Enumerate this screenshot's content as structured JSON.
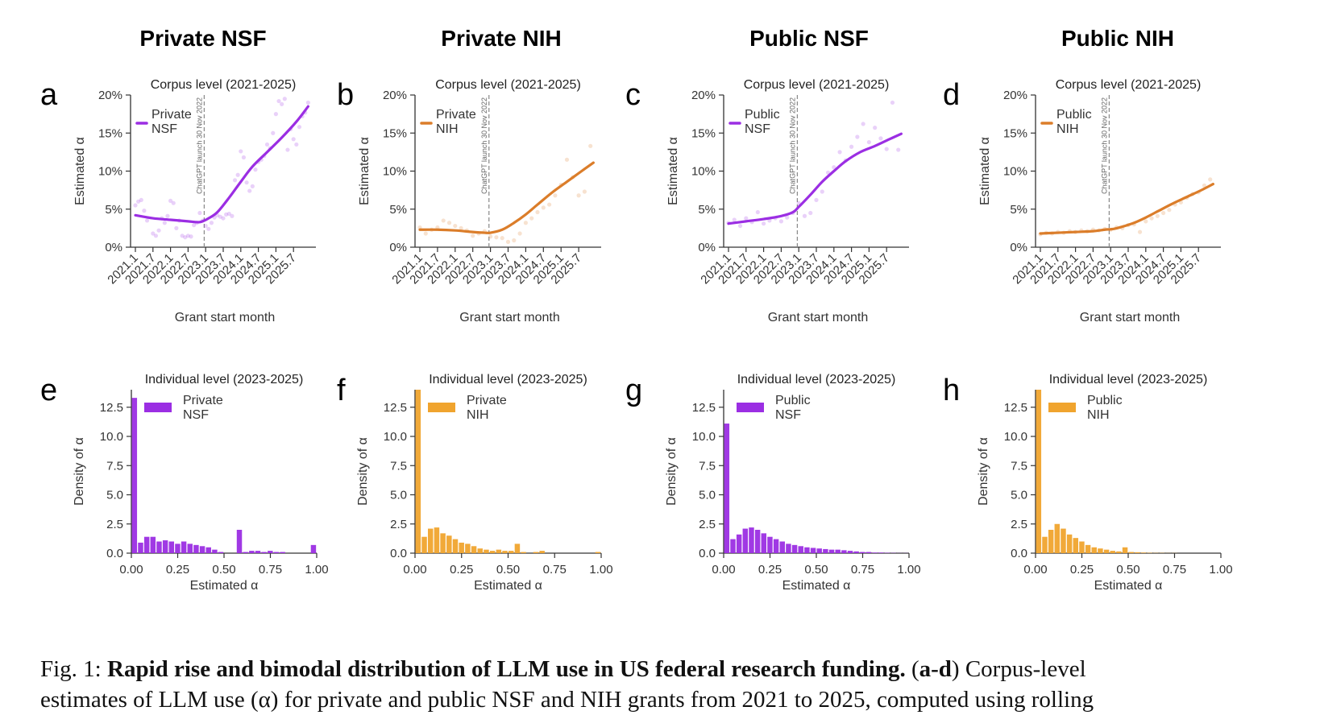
{
  "columns": [
    "Private NSF",
    "Private NIH",
    "Public NSF",
    "Public NIH"
  ],
  "caption": {
    "label": "Fig. 1:",
    "title": "Rapid rise and bimodal distribution of LLM use in US federal research funding.",
    "panel_ref": "a-d",
    "line1_tail": "Corpus-level",
    "line2": "estimates of LLM use (α) for private and public NSF and NIH grants from 2021 to 2025, computed using rolling"
  },
  "colors": {
    "nsf": "#9b2ee3",
    "nih_line": "#db7d2a",
    "nih_bar": "#f0a42e",
    "vline": "#888888",
    "axis": "#333333"
  },
  "chart_data": [
    {
      "panel": "a",
      "type": "line",
      "title": "Corpus level (2021-2025)",
      "xlabel": "Grant start month",
      "ylabel": "Estimated α",
      "legend": "Private\nNSF",
      "legend_position": "top-left",
      "color_key": "nsf",
      "ylim": [
        0,
        20
      ],
      "y_ticks": [
        0,
        5,
        10,
        15,
        20
      ],
      "y_tick_labels": [
        "0%",
        "5%",
        "10%",
        "15%",
        "20%"
      ],
      "x_ticks": [
        "2021.1",
        "2021.7",
        "2022.1",
        "2022.7",
        "2023.1",
        "2023.7",
        "2024.1",
        "2024.7",
        "2025.1",
        "2025.7"
      ],
      "x_range": [
        0,
        60
      ],
      "vline": {
        "x": 23.5,
        "label": "ChatGPT launch 30 Nov 2022"
      },
      "line": {
        "x": [
          0,
          6,
          12,
          18,
          22,
          25,
          28,
          32,
          36,
          40,
          45,
          50,
          55,
          59
        ],
        "y": [
          4.2,
          3.8,
          3.6,
          3.4,
          3.3,
          3.8,
          4.6,
          6.5,
          8.6,
          10.6,
          12.5,
          14.4,
          16.5,
          18.5
        ]
      },
      "points": {
        "x": [
          0,
          1,
          2,
          3,
          4,
          6,
          7,
          8,
          9,
          10,
          11,
          12,
          13,
          14,
          15,
          16,
          17,
          18,
          19,
          20,
          21,
          22,
          23,
          24,
          25,
          26,
          27,
          28,
          29,
          30,
          31,
          32,
          33,
          34,
          35,
          36,
          37,
          38,
          39,
          40,
          41,
          42,
          43,
          44,
          45,
          46,
          47,
          48,
          49,
          50,
          51,
          52,
          53,
          54,
          55,
          56,
          57,
          58,
          59
        ],
        "y": [
          5.5,
          6,
          6.2,
          4.8,
          3.5,
          1.8,
          1.5,
          2.2,
          3.8,
          3.2,
          4.1,
          6.1,
          5.8,
          2.5,
          3.5,
          1.5,
          1.3,
          1.5,
          1.4,
          2.9,
          3.2,
          4.5,
          3.5,
          2.8,
          2.4,
          3.2,
          3.9,
          4.2,
          4,
          3.8,
          4.3,
          4.4,
          4.1,
          8.8,
          9.5,
          12.6,
          11.8,
          8.5,
          7.4,
          8,
          10.2,
          11.2,
          11.5,
          12,
          13.5,
          13,
          15,
          17.5,
          19.2,
          18.8,
          19.5,
          12.8,
          15.5,
          14.2,
          13.5,
          15.8,
          17.2,
          17.7,
          19
        ]
      }
    },
    {
      "panel": "b",
      "type": "line",
      "title": "Corpus level (2021-2025)",
      "xlabel": "Grant start month",
      "ylabel": "Estimated α",
      "legend": "Private\nNIH",
      "legend_position": "top-left",
      "color_key": "nih_line",
      "ylim": [
        0,
        20
      ],
      "y_ticks": [
        0,
        5,
        10,
        15,
        20
      ],
      "y_tick_labels": [
        "0%",
        "5%",
        "10%",
        "15%",
        "20%"
      ],
      "x_ticks": [
        "2021.1",
        "2021.7",
        "2022.1",
        "2022.7",
        "2023.1",
        "2023.7",
        "2024.1",
        "2024.7",
        "2025.1",
        "2025.7"
      ],
      "x_range": [
        0,
        60
      ],
      "vline": {
        "x": 23.5,
        "label": "ChatGPT launch 30 Nov 2022"
      },
      "line": {
        "x": [
          0,
          6,
          12,
          18,
          22,
          24,
          28,
          32,
          36,
          40,
          45,
          50,
          55,
          59
        ],
        "y": [
          2.3,
          2.3,
          2.2,
          2,
          1.9,
          1.9,
          2.3,
          3.2,
          4.3,
          5.6,
          7.2,
          8.6,
          10,
          11.1
        ]
      },
      "points": {
        "x": [
          0,
          2,
          4,
          6,
          8,
          10,
          12,
          14,
          16,
          18,
          20,
          22,
          24,
          26,
          28,
          30,
          32,
          34,
          36,
          38,
          40,
          42,
          44,
          46,
          48,
          50,
          52,
          54,
          56,
          58
        ],
        "y": [
          2.6,
          1.8,
          2.3,
          2.6,
          3.5,
          3.2,
          2.8,
          2.5,
          2.2,
          1.5,
          1.8,
          2.1,
          1.4,
          1.3,
          1.2,
          0.7,
          0.9,
          1.8,
          3.2,
          3.8,
          4.6,
          5.2,
          5.6,
          6.8,
          8.2,
          11.5,
          9.2,
          6.8,
          7.3,
          13.3
        ]
      }
    },
    {
      "panel": "c",
      "type": "line",
      "title": "Corpus level (2021-2025)",
      "xlabel": "Grant start month",
      "ylabel": "Estimated α",
      "legend": "Public\nNSF",
      "legend_position": "top-left",
      "color_key": "nsf",
      "ylim": [
        0,
        20
      ],
      "y_ticks": [
        0,
        5,
        10,
        15,
        20
      ],
      "y_tick_labels": [
        "0%",
        "5%",
        "10%",
        "15%",
        "20%"
      ],
      "x_ticks": [
        "2021.1",
        "2021.7",
        "2022.1",
        "2022.7",
        "2023.1",
        "2023.7",
        "2024.1",
        "2024.7",
        "2025.1",
        "2025.7"
      ],
      "x_range": [
        0,
        60
      ],
      "vline": {
        "x": 23.5,
        "label": "ChatGPT launch 30 Nov 2022"
      },
      "line": {
        "x": [
          0,
          6,
          12,
          18,
          22,
          24,
          28,
          32,
          36,
          40,
          45,
          50,
          55,
          59
        ],
        "y": [
          3.1,
          3.4,
          3.7,
          4.1,
          4.6,
          5.3,
          6.9,
          8.6,
          10,
          11.3,
          12.5,
          13.3,
          14.2,
          14.9
        ]
      },
      "points": {
        "x": [
          0,
          2,
          4,
          6,
          8,
          10,
          12,
          14,
          16,
          18,
          20,
          22,
          24,
          26,
          28,
          30,
          32,
          34,
          36,
          38,
          40,
          42,
          44,
          46,
          48,
          50,
          52,
          54,
          56,
          58
        ],
        "y": [
          3.2,
          3.6,
          2.8,
          3.8,
          3.3,
          4.6,
          3.1,
          3.5,
          3.8,
          3.4,
          3.9,
          4.5,
          5.8,
          4.1,
          4.5,
          6.2,
          7.3,
          9.8,
          10.5,
          12.5,
          11.4,
          13.2,
          14.5,
          16.2,
          13.8,
          15.7,
          14.3,
          12.9,
          19,
          12.8
        ]
      }
    },
    {
      "panel": "d",
      "type": "line",
      "title": "Corpus level (2021-2025)",
      "xlabel": "Grant start month",
      "ylabel": "Estimated α",
      "legend": "Public\nNIH",
      "legend_position": "top-left",
      "color_key": "nih_line",
      "ylim": [
        0,
        20
      ],
      "y_ticks": [
        0,
        5,
        10,
        15,
        20
      ],
      "y_tick_labels": [
        "0%",
        "5%",
        "10%",
        "15%",
        "20%"
      ],
      "x_ticks": [
        "2021.1",
        "2021.7",
        "2022.1",
        "2022.7",
        "2023.1",
        "2023.7",
        "2024.1",
        "2024.7",
        "2025.1",
        "2025.7"
      ],
      "x_range": [
        0,
        60
      ],
      "vline": {
        "x": 23.5,
        "label": "ChatGPT launch 30 Nov 2022"
      },
      "line": {
        "x": [
          0,
          6,
          12,
          18,
          22,
          25,
          28,
          32,
          36,
          40,
          45,
          50,
          55,
          59
        ],
        "y": [
          1.8,
          1.9,
          2,
          2.1,
          2.3,
          2.4,
          2.7,
          3.2,
          3.9,
          4.7,
          5.7,
          6.6,
          7.5,
          8.3
        ]
      },
      "points": {
        "x": [
          0,
          2,
          4,
          6,
          8,
          10,
          12,
          14,
          16,
          18,
          20,
          22,
          24,
          26,
          28,
          30,
          32,
          34,
          36,
          38,
          40,
          42,
          44,
          46,
          48,
          50,
          52,
          54,
          56,
          58
        ],
        "y": [
          1.7,
          1.9,
          1.8,
          2,
          1.9,
          2.1,
          2,
          2.2,
          2.1,
          2.3,
          2.2,
          2.4,
          2.3,
          2.6,
          2.5,
          2.9,
          3,
          2,
          3.4,
          3.8,
          4.1,
          4.5,
          4.9,
          5.6,
          5.9,
          6.5,
          7,
          7.2,
          8.1,
          8.9
        ]
      }
    },
    {
      "panel": "e",
      "type": "bar",
      "title": "Individual level (2023-2025)",
      "xlabel": "Estimated α",
      "ylabel": "Density of α",
      "legend": "Private\nNSF",
      "legend_position": "top-center",
      "color_key": "nsf",
      "xlim": [
        0,
        1
      ],
      "ylim": [
        0,
        14
      ],
      "x_ticks": [
        0,
        0.25,
        0.5,
        0.75,
        1
      ],
      "x_tick_labels": [
        "0.00",
        "0.25",
        "0.50",
        "0.75",
        "1.00"
      ],
      "y_ticks": [
        0,
        2.5,
        5,
        7.5,
        10,
        12.5
      ],
      "y_tick_labels": [
        "0.0",
        "2.5",
        "5.0",
        "7.5",
        "10.0",
        "12.5"
      ],
      "bin_width": 0.0333,
      "values": [
        13.3,
        0.9,
        1.4,
        1.4,
        1.0,
        1.1,
        1.0,
        0.8,
        1.0,
        0.8,
        0.7,
        0.6,
        0.5,
        0.3,
        0.1,
        0.0,
        0.0,
        2.0,
        0.1,
        0.2,
        0.2,
        0.1,
        0.2,
        0.1,
        0.1,
        0.0,
        0.0,
        0.0,
        0.0,
        0.7
      ]
    },
    {
      "panel": "f",
      "type": "bar",
      "title": "Individual level (2023-2025)",
      "xlabel": "Estimated α",
      "ylabel": "Density of α",
      "legend": "Private\nNIH",
      "legend_position": "top-center",
      "color_key": "nih_bar",
      "xlim": [
        0,
        1
      ],
      "ylim": [
        0,
        14
      ],
      "x_ticks": [
        0,
        0.25,
        0.5,
        0.75,
        1
      ],
      "x_tick_labels": [
        "0.00",
        "0.25",
        "0.50",
        "0.75",
        "1.00"
      ],
      "y_ticks": [
        0,
        2.5,
        5,
        7.5,
        10,
        12.5
      ],
      "y_tick_labels": [
        "0.0",
        "2.5",
        "5.0",
        "7.5",
        "10.0",
        "12.5"
      ],
      "bin_width": 0.0333,
      "values": [
        14.0,
        1.4,
        2.1,
        2.2,
        1.7,
        1.5,
        1.2,
        0.9,
        0.8,
        0.6,
        0.4,
        0.3,
        0.2,
        0.3,
        0.2,
        0.2,
        0.8,
        0.1,
        0.0,
        0.1,
        0.2,
        0.0,
        0.0,
        0.0,
        0.0,
        0.0,
        0.0,
        0.0,
        0.0,
        0.1
      ]
    },
    {
      "panel": "g",
      "type": "bar",
      "title": "Individual level (2023-2025)",
      "xlabel": "Estimated α",
      "ylabel": "Density of α",
      "legend": "Public\nNSF",
      "legend_position": "top-center",
      "color_key": "nsf",
      "xlim": [
        0,
        1
      ],
      "ylim": [
        0,
        14
      ],
      "x_ticks": [
        0,
        0.25,
        0.5,
        0.75,
        1
      ],
      "x_tick_labels": [
        "0.00",
        "0.25",
        "0.50",
        "0.75",
        "1.00"
      ],
      "y_ticks": [
        0,
        2.5,
        5,
        7.5,
        10,
        12.5
      ],
      "y_tick_labels": [
        "0.0",
        "2.5",
        "5.0",
        "7.5",
        "10.0",
        "12.5"
      ],
      "bin_width": 0.0333,
      "values": [
        11.1,
        1.2,
        1.6,
        2.1,
        2.2,
        2.0,
        1.7,
        1.4,
        1.2,
        1.0,
        0.8,
        0.7,
        0.6,
        0.5,
        0.45,
        0.4,
        0.35,
        0.3,
        0.3,
        0.25,
        0.2,
        0.15,
        0.1,
        0.1,
        0.05,
        0.05,
        0.03,
        0.02,
        0.01,
        0.01
      ]
    },
    {
      "panel": "h",
      "type": "bar",
      "title": "Individual level (2023-2025)",
      "xlabel": "Estimated α",
      "ylabel": "Density of α",
      "legend": "Public\nNIH",
      "legend_position": "top-center",
      "color_key": "nih_bar",
      "xlim": [
        0,
        1
      ],
      "ylim": [
        0,
        14
      ],
      "x_ticks": [
        0,
        0.25,
        0.5,
        0.75,
        1
      ],
      "x_tick_labels": [
        "0.00",
        "0.25",
        "0.50",
        "0.75",
        "1.00"
      ],
      "y_ticks": [
        0,
        2.5,
        5,
        7.5,
        10,
        12.5
      ],
      "y_tick_labels": [
        "0.0",
        "2.5",
        "5.0",
        "7.5",
        "10.0",
        "12.5"
      ],
      "bin_width": 0.0333,
      "values": [
        14.0,
        1.4,
        2.0,
        2.5,
        2.1,
        1.6,
        1.3,
        1.0,
        0.7,
        0.5,
        0.4,
        0.3,
        0.2,
        0.15,
        0.5,
        0.1,
        0.08,
        0.05,
        0.03,
        0.02,
        0.02,
        0.01,
        0.01,
        0.0,
        0.0,
        0.0,
        0.0,
        0.0,
        0.0,
        0.0
      ]
    }
  ]
}
